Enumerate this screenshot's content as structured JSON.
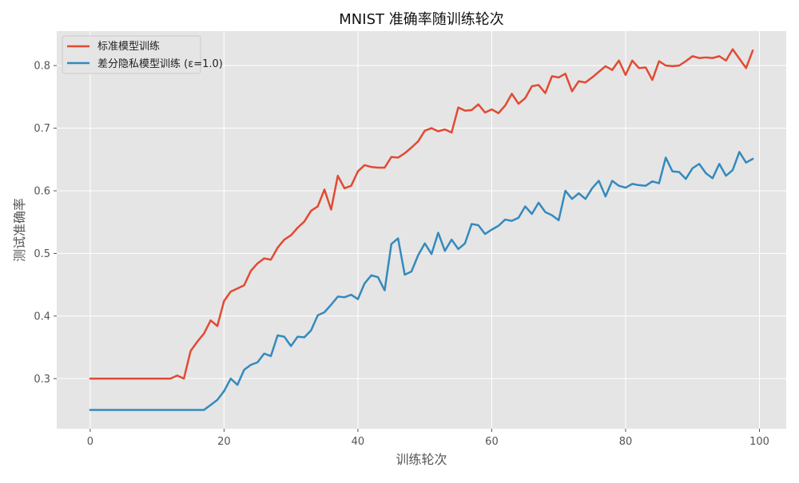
{
  "chart_data": {
    "type": "line",
    "title": "MNIST 准确率随训练轮次",
    "xlabel": "训练轮次",
    "ylabel": "测试准确率",
    "xlim": [
      -5,
      104
    ],
    "ylim": [
      0.22,
      0.855
    ],
    "x_ticks": [
      0,
      20,
      40,
      60,
      80,
      100
    ],
    "y_ticks": [
      0.3,
      0.4,
      0.5,
      0.6,
      0.7,
      0.8
    ],
    "grid": true,
    "legend_position": "top-left",
    "series": [
      {
        "name": "标准模型训练",
        "color": "#E24A33",
        "x": [
          0,
          1,
          2,
          3,
          4,
          5,
          6,
          7,
          8,
          9,
          10,
          11,
          12,
          13,
          14,
          15,
          16,
          17,
          18,
          19,
          20,
          21,
          22,
          23,
          24,
          25,
          26,
          27,
          28,
          29,
          30,
          31,
          32,
          33,
          34,
          35,
          36,
          37,
          38,
          39,
          40,
          41,
          42,
          43,
          44,
          45,
          46,
          47,
          48,
          49,
          50,
          51,
          52,
          53,
          54,
          55,
          56,
          57,
          58,
          59,
          60,
          61,
          62,
          63,
          64,
          65,
          66,
          67,
          68,
          69,
          70,
          71,
          72,
          73,
          74,
          75,
          76,
          77,
          78,
          79,
          80,
          81,
          82,
          83,
          84,
          85,
          86,
          87,
          88,
          89,
          90,
          91,
          92,
          93,
          94,
          95,
          96,
          97,
          98,
          99
        ],
        "values": [
          0.3,
          0.3,
          0.3,
          0.3,
          0.3,
          0.3,
          0.3,
          0.3,
          0.3,
          0.3,
          0.3,
          0.3,
          0.3,
          0.305,
          0.3,
          0.344,
          0.359,
          0.372,
          0.393,
          0.384,
          0.424,
          0.439,
          0.444,
          0.449,
          0.472,
          0.484,
          0.492,
          0.49,
          0.509,
          0.522,
          0.529,
          0.541,
          0.551,
          0.568,
          0.575,
          0.602,
          0.57,
          0.624,
          0.604,
          0.608,
          0.631,
          0.641,
          0.638,
          0.637,
          0.637,
          0.654,
          0.653,
          0.66,
          0.669,
          0.679,
          0.696,
          0.7,
          0.695,
          0.698,
          0.693,
          0.733,
          0.728,
          0.729,
          0.738,
          0.725,
          0.73,
          0.724,
          0.736,
          0.755,
          0.739,
          0.748,
          0.767,
          0.769,
          0.756,
          0.783,
          0.781,
          0.787,
          0.759,
          0.775,
          0.773,
          0.781,
          0.79,
          0.799,
          0.793,
          0.808,
          0.785,
          0.808,
          0.796,
          0.797,
          0.777,
          0.807,
          0.8,
          0.799,
          0.8,
          0.807,
          0.815,
          0.812,
          0.813,
          0.812,
          0.815,
          0.808,
          0.826,
          0.811,
          0.796,
          0.824
        ]
      },
      {
        "name": "差分隐私模型训练 (ε=1.0)",
        "color": "#348ABD",
        "x": [
          0,
          1,
          2,
          3,
          4,
          5,
          6,
          7,
          8,
          9,
          10,
          11,
          12,
          13,
          14,
          15,
          16,
          17,
          18,
          19,
          20,
          21,
          22,
          23,
          24,
          25,
          26,
          27,
          28,
          29,
          30,
          31,
          32,
          33,
          34,
          35,
          36,
          37,
          38,
          39,
          40,
          41,
          42,
          43,
          44,
          45,
          46,
          47,
          48,
          49,
          50,
          51,
          52,
          53,
          54,
          55,
          56,
          57,
          58,
          59,
          60,
          61,
          62,
          63,
          64,
          65,
          66,
          67,
          68,
          69,
          70,
          71,
          72,
          73,
          74,
          75,
          76,
          77,
          78,
          79,
          80,
          81,
          82,
          83,
          84,
          85,
          86,
          87,
          88,
          89,
          90,
          91,
          92,
          93,
          94,
          95,
          96,
          97,
          98,
          99
        ],
        "values": [
          0.25,
          0.25,
          0.25,
          0.25,
          0.25,
          0.25,
          0.25,
          0.25,
          0.25,
          0.25,
          0.25,
          0.25,
          0.25,
          0.25,
          0.25,
          0.25,
          0.25,
          0.25,
          0.258,
          0.266,
          0.28,
          0.3,
          0.29,
          0.314,
          0.322,
          0.326,
          0.34,
          0.336,
          0.369,
          0.367,
          0.352,
          0.367,
          0.366,
          0.377,
          0.401,
          0.406,
          0.418,
          0.431,
          0.43,
          0.434,
          0.427,
          0.452,
          0.465,
          0.462,
          0.441,
          0.515,
          0.524,
          0.466,
          0.471,
          0.497,
          0.516,
          0.499,
          0.533,
          0.504,
          0.522,
          0.507,
          0.516,
          0.547,
          0.545,
          0.531,
          0.538,
          0.544,
          0.554,
          0.552,
          0.557,
          0.575,
          0.563,
          0.581,
          0.566,
          0.561,
          0.553,
          0.6,
          0.587,
          0.596,
          0.587,
          0.604,
          0.616,
          0.591,
          0.616,
          0.608,
          0.605,
          0.611,
          0.609,
          0.608,
          0.615,
          0.612,
          0.653,
          0.631,
          0.63,
          0.619,
          0.636,
          0.643,
          0.628,
          0.62,
          0.643,
          0.624,
          0.633,
          0.662,
          0.645,
          0.651
        ]
      }
    ]
  }
}
